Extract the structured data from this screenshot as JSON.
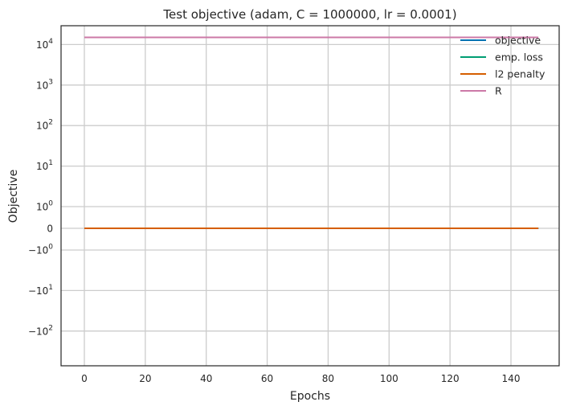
{
  "chart_data": {
    "type": "line",
    "title": "Test objective (adam, C = 1000000, lr = 0.0001)",
    "xlabel": "Epochs",
    "ylabel": "Objective",
    "yscale": "symlog",
    "grid": true,
    "legend_position": "top-right",
    "x_ticks": [
      0,
      20,
      40,
      60,
      80,
      100,
      120,
      140
    ],
    "y_ticks": [
      {
        "value": -100,
        "label": "−10",
        "exp": "2"
      },
      {
        "value": -10,
        "label": "−10",
        "exp": "1"
      },
      {
        "value": -1,
        "label": "−10",
        "exp": "0"
      },
      {
        "value": 0,
        "label": "0",
        "exp": ""
      },
      {
        "value": 1,
        "label": "10",
        "exp": "0"
      },
      {
        "value": 10,
        "label": "10",
        "exp": "1"
      },
      {
        "value": 100,
        "label": "10",
        "exp": "2"
      },
      {
        "value": 1000,
        "label": "10",
        "exp": "3"
      },
      {
        "value": 10000,
        "label": "10",
        "exp": "4"
      }
    ],
    "x_range": [
      0,
      149
    ],
    "series": [
      {
        "name": "objective",
        "color": "#0072b2",
        "y": 0
      },
      {
        "name": "emp. loss",
        "color": "#009e73",
        "y": 0
      },
      {
        "name": "l2 penalty",
        "color": "#d55e00",
        "y": 0
      },
      {
        "name": "R",
        "color": "#cc79a7",
        "y": 15000
      }
    ]
  }
}
